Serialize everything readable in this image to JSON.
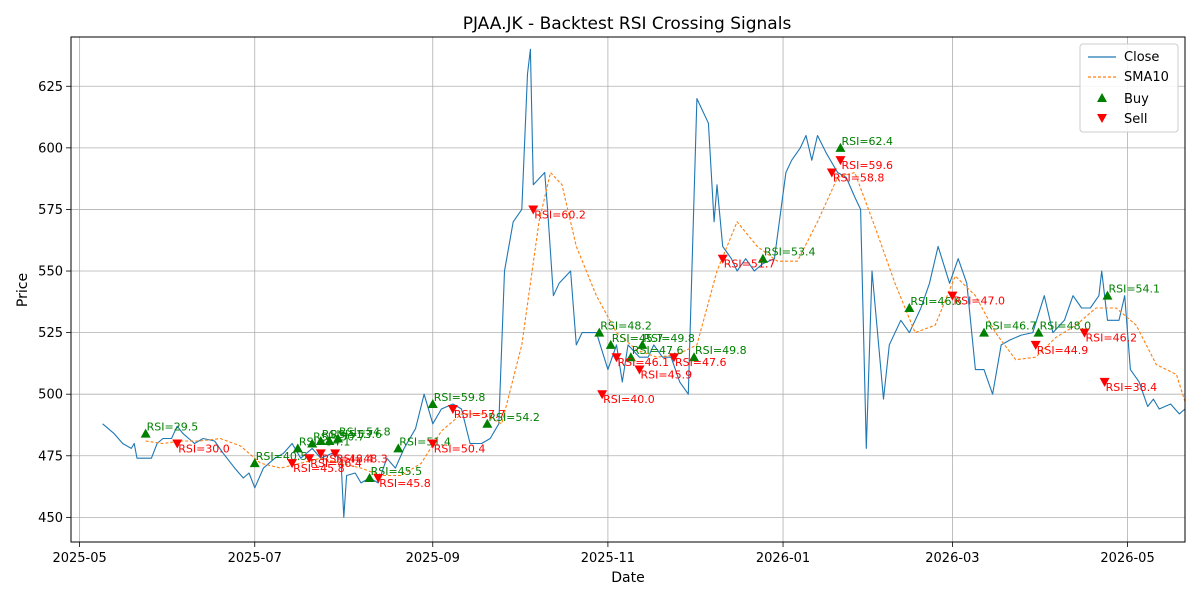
{
  "chart_data": {
    "type": "line",
    "title": "PJAA.JK - Backtest RSI Crossing Signals",
    "xlabel": "Date",
    "ylabel": "Price",
    "ylim": [
      440,
      645
    ],
    "xlim": [
      "2025-04-28",
      "2026-05-21"
    ],
    "grid": true,
    "legend_position": "top-right",
    "x_ticks": [
      "2025-05",
      "2025-07",
      "2025-09",
      "2025-11",
      "2026-01",
      "2026-03",
      "2026-05"
    ],
    "y_ticks": [
      450,
      475,
      500,
      525,
      550,
      575,
      600,
      625
    ],
    "legend": [
      "Close",
      "SMA10",
      "Buy",
      "Sell"
    ],
    "colors": {
      "close": "#1f77b4",
      "sma": "#ff7f0e",
      "buy": "#008000",
      "sell": "#ff0000",
      "buy_text": "#008000",
      "sell_text": "#ff0000"
    },
    "series": [
      {
        "name": "Close",
        "style": "solid",
        "color": "#1f77b4",
        "points": [
          [
            "2025-05-09",
            488
          ],
          [
            "2025-05-13",
            484
          ],
          [
            "2025-05-16",
            480
          ],
          [
            "2025-05-19",
            478
          ],
          [
            "2025-05-20",
            480
          ],
          [
            "2025-05-21",
            474
          ],
          [
            "2025-05-23",
            474
          ],
          [
            "2025-05-26",
            474
          ],
          [
            "2025-05-28",
            480
          ],
          [
            "2025-05-30",
            482
          ],
          [
            "2025-06-02",
            482
          ],
          [
            "2025-06-04",
            487
          ],
          [
            "2025-06-06",
            484
          ],
          [
            "2025-06-10",
            480
          ],
          [
            "2025-06-13",
            482
          ],
          [
            "2025-06-17",
            481
          ],
          [
            "2025-06-20",
            476
          ],
          [
            "2025-06-24",
            470
          ],
          [
            "2025-06-27",
            466
          ],
          [
            "2025-06-29",
            468
          ],
          [
            "2025-07-01",
            462
          ],
          [
            "2025-07-04",
            470
          ],
          [
            "2025-07-08",
            474
          ],
          [
            "2025-07-11",
            476
          ],
          [
            "2025-07-14",
            480
          ],
          [
            "2025-07-17",
            474
          ],
          [
            "2025-07-21",
            478
          ],
          [
            "2025-07-24",
            474
          ],
          [
            "2025-07-28",
            476
          ],
          [
            "2025-07-31",
            474
          ],
          [
            "2025-08-01",
            450
          ],
          [
            "2025-08-02",
            467
          ],
          [
            "2025-08-05",
            468
          ],
          [
            "2025-08-07",
            464
          ],
          [
            "2025-08-10",
            466
          ],
          [
            "2025-08-13",
            464
          ],
          [
            "2025-08-16",
            474
          ],
          [
            "2025-08-19",
            470
          ],
          [
            "2025-08-22",
            478
          ],
          [
            "2025-08-26",
            486
          ],
          [
            "2025-08-29",
            500
          ],
          [
            "2025-09-01",
            488
          ],
          [
            "2025-09-04",
            494
          ],
          [
            "2025-09-08",
            496
          ],
          [
            "2025-09-11",
            494
          ],
          [
            "2025-09-14",
            480
          ],
          [
            "2025-09-18",
            480
          ],
          [
            "2025-09-21",
            482
          ],
          [
            "2025-09-24",
            488
          ],
          [
            "2025-09-26",
            550
          ],
          [
            "2025-09-29",
            570
          ],
          [
            "2025-10-02",
            575
          ],
          [
            "2025-10-04",
            630
          ],
          [
            "2025-10-05",
            640
          ],
          [
            "2025-10-06",
            585
          ],
          [
            "2025-10-10",
            590
          ],
          [
            "2025-10-11",
            575
          ],
          [
            "2025-10-13",
            540
          ],
          [
            "2025-10-15",
            545
          ],
          [
            "2025-10-19",
            550
          ],
          [
            "2025-10-21",
            520
          ],
          [
            "2025-10-23",
            525
          ],
          [
            "2025-10-28",
            525
          ],
          [
            "2025-11-01",
            510
          ],
          [
            "2025-11-04",
            520
          ],
          [
            "2025-11-06",
            505
          ],
          [
            "2025-11-08",
            520
          ],
          [
            "2025-11-12",
            515
          ],
          [
            "2025-11-15",
            515
          ],
          [
            "2025-11-17",
            520
          ],
          [
            "2025-11-20",
            515
          ],
          [
            "2025-11-23",
            515
          ],
          [
            "2025-11-26",
            505
          ],
          [
            "2025-11-29",
            500
          ],
          [
            "2025-12-02",
            620
          ],
          [
            "2025-12-06",
            610
          ],
          [
            "2025-12-08",
            570
          ],
          [
            "2025-12-09",
            585
          ],
          [
            "2025-12-11",
            560
          ],
          [
            "2025-12-14",
            555
          ],
          [
            "2025-12-16",
            550
          ],
          [
            "2025-12-19",
            555
          ],
          [
            "2025-12-22",
            550
          ],
          [
            "2025-12-25",
            553
          ],
          [
            "2025-12-29",
            555
          ],
          [
            "2026-01-02",
            590
          ],
          [
            "2026-01-04",
            595
          ],
          [
            "2026-01-07",
            600
          ],
          [
            "2026-01-09",
            605
          ],
          [
            "2026-01-11",
            595
          ],
          [
            "2026-01-13",
            605
          ],
          [
            "2026-01-16",
            598
          ],
          [
            "2026-01-20",
            590
          ],
          [
            "2026-01-23",
            588
          ],
          [
            "2026-01-26",
            580
          ],
          [
            "2026-01-28",
            575
          ],
          [
            "2026-01-30",
            478
          ],
          [
            "2026-02-01",
            550
          ],
          [
            "2026-02-05",
            498
          ],
          [
            "2026-02-07",
            520
          ],
          [
            "2026-02-11",
            530
          ],
          [
            "2026-02-14",
            525
          ],
          [
            "2026-02-18",
            535
          ],
          [
            "2026-02-21",
            545
          ],
          [
            "2026-02-24",
            560
          ],
          [
            "2026-02-28",
            545
          ],
          [
            "2026-03-03",
            555
          ],
          [
            "2026-03-06",
            545
          ],
          [
            "2026-03-09",
            510
          ],
          [
            "2026-03-12",
            510
          ],
          [
            "2026-03-15",
            500
          ],
          [
            "2026-03-18",
            520
          ],
          [
            "2026-03-21",
            522
          ],
          [
            "2026-03-25",
            524
          ],
          [
            "2026-03-29",
            525
          ],
          [
            "2026-04-02",
            540
          ],
          [
            "2026-04-05",
            525
          ],
          [
            "2026-04-09",
            530
          ],
          [
            "2026-04-12",
            540
          ],
          [
            "2026-04-15",
            535
          ],
          [
            "2026-04-18",
            535
          ],
          [
            "2026-04-21",
            540
          ],
          [
            "2026-04-22",
            550
          ],
          [
            "2026-04-24",
            530
          ],
          [
            "2026-04-26",
            530
          ],
          [
            "2026-04-28",
            530
          ],
          [
            "2026-04-30",
            540
          ],
          [
            "2026-05-02",
            510
          ],
          [
            "2026-05-05",
            505
          ],
          [
            "2026-05-08",
            495
          ],
          [
            "2026-05-10",
            498
          ],
          [
            "2026-05-12",
            494
          ],
          [
            "2026-05-16",
            496
          ],
          [
            "2026-05-19",
            492
          ],
          [
            "2026-05-21",
            494
          ]
        ]
      },
      {
        "name": "SMA10",
        "style": "dashed",
        "color": "#ff7f0e",
        "points": [
          [
            "2025-05-24",
            481
          ],
          [
            "2025-05-30",
            480
          ],
          [
            "2025-06-05",
            481
          ],
          [
            "2025-06-12",
            481
          ],
          [
            "2025-06-19",
            482
          ],
          [
            "2025-06-26",
            479
          ],
          [
            "2025-07-03",
            472
          ],
          [
            "2025-07-10",
            470
          ],
          [
            "2025-07-17",
            472
          ],
          [
            "2025-07-24",
            474
          ],
          [
            "2025-07-31",
            472
          ],
          [
            "2025-08-07",
            470
          ],
          [
            "2025-08-14",
            467
          ],
          [
            "2025-08-21",
            467
          ],
          [
            "2025-08-28",
            472
          ],
          [
            "2025-09-04",
            485
          ],
          [
            "2025-09-11",
            492
          ],
          [
            "2025-09-18",
            492
          ],
          [
            "2025-09-25",
            488
          ],
          [
            "2025-10-02",
            520
          ],
          [
            "2025-10-08",
            570
          ],
          [
            "2025-10-12",
            590
          ],
          [
            "2025-10-16",
            585
          ],
          [
            "2025-10-21",
            560
          ],
          [
            "2025-10-28",
            540
          ],
          [
            "2025-11-04",
            525
          ],
          [
            "2025-11-11",
            518
          ],
          [
            "2025-11-18",
            515
          ],
          [
            "2025-11-25",
            516
          ],
          [
            "2025-12-02",
            520
          ],
          [
            "2025-12-09",
            550
          ],
          [
            "2025-12-16",
            570
          ],
          [
            "2025-12-23",
            560
          ],
          [
            "2025-12-30",
            554
          ],
          [
            "2026-01-06",
            554
          ],
          [
            "2026-01-13",
            570
          ],
          [
            "2026-01-20",
            588
          ],
          [
            "2026-01-26",
            590
          ],
          [
            "2026-02-02",
            568
          ],
          [
            "2026-02-09",
            545
          ],
          [
            "2026-02-16",
            525
          ],
          [
            "2026-02-23",
            528
          ],
          [
            "2026-03-02",
            548
          ],
          [
            "2026-03-09",
            540
          ],
          [
            "2026-03-16",
            525
          ],
          [
            "2026-03-23",
            514
          ],
          [
            "2026-03-30",
            515
          ],
          [
            "2026-04-06",
            523
          ],
          [
            "2026-04-13",
            528
          ],
          [
            "2026-04-20",
            535
          ],
          [
            "2026-04-27",
            535
          ],
          [
            "2026-05-04",
            528
          ],
          [
            "2026-05-11",
            512
          ],
          [
            "2026-05-18",
            508
          ],
          [
            "2026-05-21",
            497
          ]
        ]
      }
    ],
    "buy_signals": [
      {
        "date": "2025-05-24",
        "price": 484,
        "label": "RSI=29.5"
      },
      {
        "date": "2025-07-01",
        "price": 472,
        "label": "RSI=40.5"
      },
      {
        "date": "2025-07-16",
        "price": 478,
        "label": "RSI=54.1"
      },
      {
        "date": "2025-07-21",
        "price": 480,
        "label": "RSI=50.7"
      },
      {
        "date": "2025-07-24",
        "price": 481,
        "label": "RSI=51.7"
      },
      {
        "date": "2025-07-27",
        "price": 481,
        "label": "RSI=53.6"
      },
      {
        "date": "2025-07-30",
        "price": 482,
        "label": "RSI=54.8"
      },
      {
        "date": "2025-08-10",
        "price": 466,
        "label": "RSI=45.5"
      },
      {
        "date": "2025-08-20",
        "price": 478,
        "label": "RSI=51.4"
      },
      {
        "date": "2025-09-01",
        "price": 496,
        "label": "RSI=59.8"
      },
      {
        "date": "2025-09-20",
        "price": 488,
        "label": "RSI=54.2"
      },
      {
        "date": "2025-10-29",
        "price": 525,
        "label": "RSI=48.2"
      },
      {
        "date": "2025-11-02",
        "price": 520,
        "label": "RSI=45.7"
      },
      {
        "date": "2025-11-09",
        "price": 515,
        "label": "RSI=47.6"
      },
      {
        "date": "2025-11-13",
        "price": 520,
        "label": "RSI=49.8"
      },
      {
        "date": "2025-12-01",
        "price": 515,
        "label": "RSI=49.8"
      },
      {
        "date": "2025-12-25",
        "price": 555,
        "label": "RSI=53.4"
      },
      {
        "date": "2026-01-21",
        "price": 600,
        "label": "RSI=62.4"
      },
      {
        "date": "2026-02-14",
        "price": 535,
        "label": "RSI=46.6"
      },
      {
        "date": "2026-03-12",
        "price": 525,
        "label": "RSI=46.7"
      },
      {
        "date": "2026-03-31",
        "price": 525,
        "label": "RSI=48.0"
      },
      {
        "date": "2026-04-24",
        "price": 540,
        "label": "RSI=54.1"
      }
    ],
    "sell_signals": [
      {
        "date": "2025-06-04",
        "price": 480,
        "label": "RSI=30.0"
      },
      {
        "date": "2025-07-14",
        "price": 472,
        "label": "RSI=45.8"
      },
      {
        "date": "2025-07-20",
        "price": 474,
        "label": "RSI=46.4"
      },
      {
        "date": "2025-07-24",
        "price": 476,
        "label": "RSI=48.4"
      },
      {
        "date": "2025-07-29",
        "price": 476,
        "label": "RSI=48.3"
      },
      {
        "date": "2025-08-13",
        "price": 466,
        "label": "RSI=45.8"
      },
      {
        "date": "2025-09-01",
        "price": 480,
        "label": "RSI=50.4"
      },
      {
        "date": "2025-09-08",
        "price": 494,
        "label": "RSI=57.7"
      },
      {
        "date": "2025-10-06",
        "price": 575,
        "label": "RSI=60.2"
      },
      {
        "date": "2025-10-30",
        "price": 500,
        "label": "RSI=40.0"
      },
      {
        "date": "2025-11-04",
        "price": 515,
        "label": "RSI=46.1"
      },
      {
        "date": "2025-11-12",
        "price": 510,
        "label": "RSI=45.9"
      },
      {
        "date": "2025-11-24",
        "price": 515,
        "label": "RSI=47.6"
      },
      {
        "date": "2025-12-11",
        "price": 555,
        "label": "RSI=51.7"
      },
      {
        "date": "2026-01-18",
        "price": 590,
        "label": "RSI=58.8"
      },
      {
        "date": "2026-01-21",
        "price": 595,
        "label": "RSI=59.6"
      },
      {
        "date": "2026-03-01",
        "price": 540,
        "label": "RSI=47.0"
      },
      {
        "date": "2026-03-30",
        "price": 520,
        "label": "RSI=44.9"
      },
      {
        "date": "2026-04-16",
        "price": 525,
        "label": "RSI=46.2"
      },
      {
        "date": "2026-04-23",
        "price": 505,
        "label": "RSI=38.4"
      }
    ]
  }
}
